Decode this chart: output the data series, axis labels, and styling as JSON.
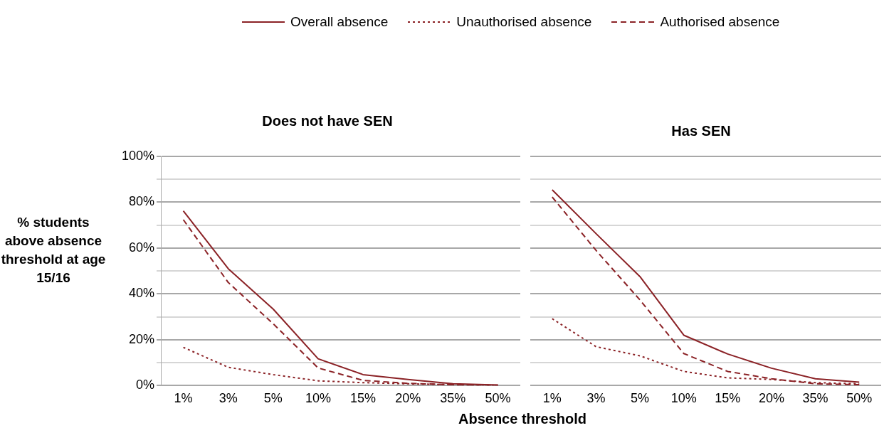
{
  "chart_data": [
    {
      "type": "line",
      "title": "Does not have SEN",
      "xlabel": "Absence threshold",
      "ylabel": "% students above absence threshold at age 15/16",
      "categories": [
        "1%",
        "3%",
        "5%",
        "10%",
        "15%",
        "20%",
        "35%",
        "50%"
      ],
      "series": [
        {
          "name": "Overall absence",
          "color": "#8b2226",
          "line_style": "solid",
          "values": [
            76.2,
            51,
            33.4,
            11.7,
            4.8,
            2.7,
            0.8,
            0.3
          ]
        },
        {
          "name": "Unauthorised absence",
          "color": "#8b2226",
          "line_style": "dotted",
          "values": [
            16.7,
            8,
            4.8,
            2.1,
            1.3,
            0.8,
            0.4,
            0.2
          ]
        },
        {
          "name": "Authorised absence",
          "color": "#8b2226",
          "line_style": "dashed",
          "values": [
            72.4,
            45,
            27,
            7.7,
            2.3,
            1,
            0.4,
            0.2
          ]
        }
      ],
      "ylim": [
        0,
        100
      ],
      "yticks": [
        {
          "value": 0,
          "label": "0%"
        },
        {
          "value": 10,
          "label": null
        },
        {
          "value": 20,
          "label": "20%"
        },
        {
          "value": 30,
          "label": null
        },
        {
          "value": 40,
          "label": "40%"
        },
        {
          "value": 50,
          "label": null
        },
        {
          "value": 60,
          "label": "60%"
        },
        {
          "value": 70,
          "label": null
        },
        {
          "value": 80,
          "label": "80%"
        },
        {
          "value": 90,
          "label": null
        },
        {
          "value": 100,
          "label": "100%"
        }
      ],
      "grid": "y",
      "legend": "top",
      "marker": "none"
    },
    {
      "type": "line",
      "title": "Has SEN",
      "categories": [
        "1%",
        "3%",
        "5%",
        "10%",
        "15%",
        "20%",
        "35%",
        "50%"
      ],
      "series": [
        {
          "color": "#8b2226",
          "line_style": "solid",
          "values": [
            85.4,
            66.3,
            47.6,
            22,
            13.8,
            7.6,
            3,
            1.5
          ]
        },
        {
          "color": "#8b2226",
          "line_style": "dotted",
          "values": [
            29.2,
            17,
            13,
            6.2,
            3.4,
            2.7,
            1.3,
            0.8
          ]
        },
        {
          "color": "#8b2226",
          "line_style": "dashed",
          "values": [
            82.3,
            59,
            37.4,
            14,
            6.2,
            3,
            0.8,
            0.4
          ]
        }
      ],
      "ylim": [
        0,
        100
      ],
      "yticks": [
        0,
        10,
        20,
        30,
        40,
        50,
        60,
        70,
        80,
        90,
        100
      ],
      "grid": "y",
      "tick_labels": "x",
      "marker": "none"
    }
  ]
}
